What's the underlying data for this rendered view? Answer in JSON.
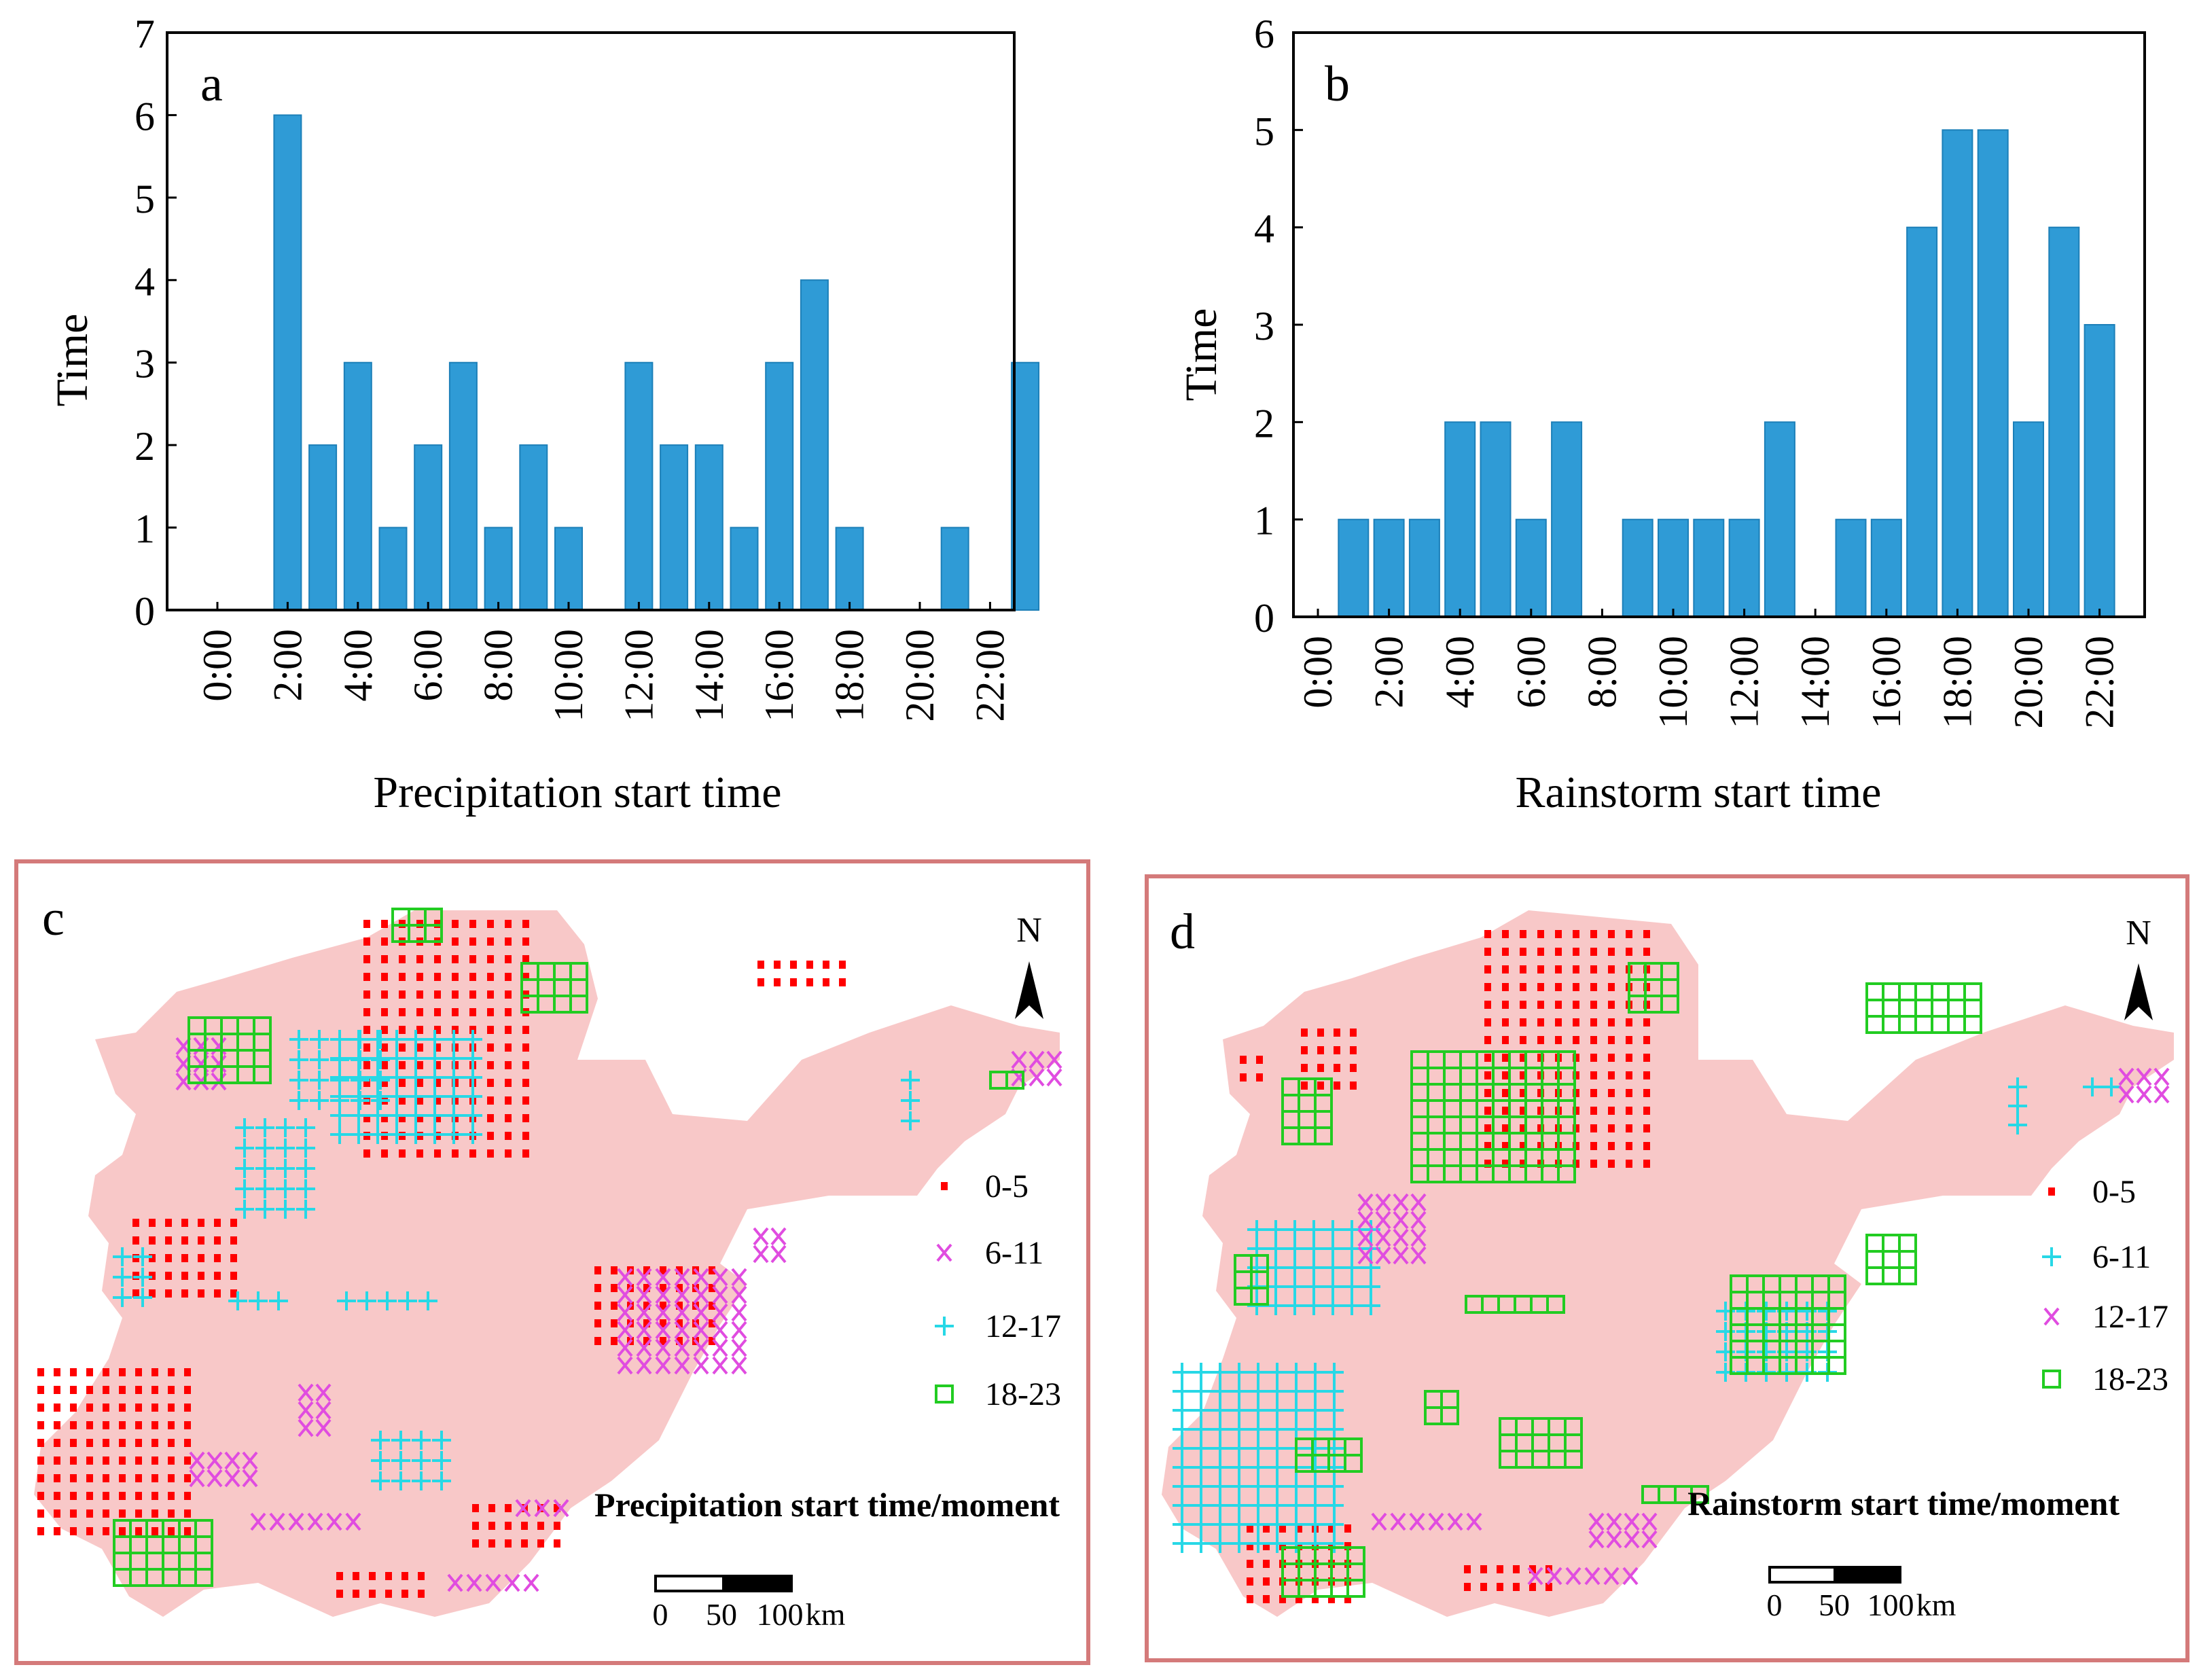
{
  "chart_data": [
    {
      "type": "bar",
      "panel": "a",
      "xlabel": "Precipitation start time",
      "ylabel": "Time",
      "ylim": [
        0,
        7
      ],
      "yticks": [
        "0",
        "1",
        "2",
        "3",
        "4",
        "5",
        "6",
        "7"
      ],
      "tick_labels": [
        "0:00",
        "2:00",
        "4:00",
        "6:00",
        "8:00",
        "10:00",
        "12:00",
        "14:00",
        "16:00",
        "18:00",
        "20:00",
        "22:00"
      ],
      "hours": [
        0,
        1,
        2,
        3,
        4,
        5,
        6,
        7,
        8,
        9,
        10,
        11,
        12,
        13,
        14,
        15,
        16,
        17,
        18,
        19,
        20,
        21,
        22,
        23
      ],
      "values": [
        0,
        0,
        6,
        2,
        3,
        1,
        2,
        3,
        1,
        2,
        1,
        0,
        3,
        2,
        2,
        1,
        3,
        4,
        1,
        0,
        0,
        1,
        0,
        3
      ],
      "bar_color": "#2f9bd6"
    },
    {
      "type": "bar",
      "panel": "b",
      "xlabel": "Rainstorm start time",
      "ylabel": "Time",
      "ylim": [
        0,
        6
      ],
      "yticks": [
        "0",
        "1",
        "2",
        "3",
        "4",
        "5",
        "6"
      ],
      "tick_labels": [
        "0:00",
        "2:00",
        "4:00",
        "6:00",
        "8:00",
        "10:00",
        "12:00",
        "14:00",
        "16:00",
        "18:00",
        "20:00",
        "22:00"
      ],
      "hours": [
        0,
        1,
        2,
        3,
        4,
        5,
        6,
        7,
        8,
        9,
        10,
        11,
        12,
        13,
        14,
        15,
        16,
        17,
        18,
        19,
        20,
        21,
        22,
        23
      ],
      "values": [
        0,
        1,
        1,
        1,
        2,
        2,
        1,
        2,
        0,
        1,
        1,
        1,
        1,
        2,
        0,
        1,
        1,
        4,
        5,
        5,
        2,
        4,
        3,
        0
      ],
      "bar_color": "#2f9bd6"
    }
  ],
  "maps": {
    "c": {
      "letter": "c",
      "title": "Precipitation start time/moment",
      "north": "N",
      "scale_labels": [
        "0",
        "50",
        "100",
        "km"
      ],
      "legend": [
        {
          "symbol": "dot",
          "label": "0-5",
          "color": "#ff0000"
        },
        {
          "symbol": "x",
          "label": "6-11",
          "color": "#e04ce0"
        },
        {
          "symbol": "plus",
          "label": "12-17",
          "color": "#27d8e6"
        },
        {
          "symbol": "square",
          "label": "18-23",
          "color": "#22cc22"
        }
      ]
    },
    "d": {
      "letter": "d",
      "title": "Rainstorm start time/moment",
      "north": "N",
      "scale_labels": [
        "0",
        "50",
        "100",
        "km"
      ],
      "legend": [
        {
          "symbol": "dot",
          "label": "0-5",
          "color": "#ff0000"
        },
        {
          "symbol": "plus",
          "label": "6-11",
          "color": "#27d8e6"
        },
        {
          "symbol": "x",
          "label": "12-17",
          "color": "#e04ce0"
        },
        {
          "symbol": "square",
          "label": "18-23",
          "color": "#22cc22"
        }
      ]
    }
  },
  "colors": {
    "map_fill": "#f8c8c8",
    "map_frame": "#d47a7a",
    "red": "#ff0000",
    "magenta": "#e04ce0",
    "cyan": "#27d8e6",
    "green": "#22cc22"
  }
}
